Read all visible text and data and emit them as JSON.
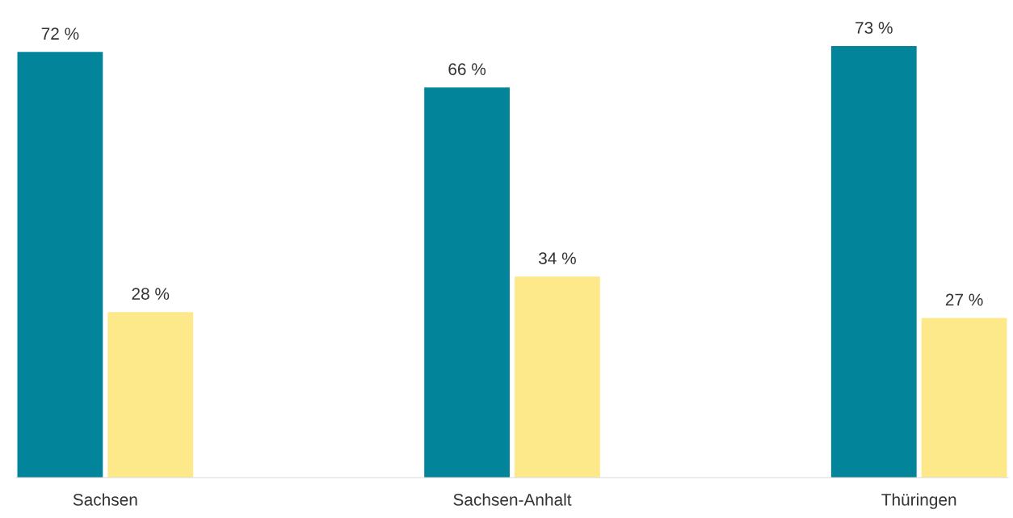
{
  "chart_data": {
    "type": "bar",
    "categories": [
      "Sachsen",
      "Sachsen-Anhalt",
      "Thüringen"
    ],
    "series": [
      {
        "color": "#02849a",
        "values": [
          72,
          66,
          73
        ],
        "value_labels": [
          "72 %",
          "66 %",
          "73 %"
        ]
      },
      {
        "color": "#fde88a",
        "values": [
          28,
          34,
          27
        ],
        "value_labels": [
          "28 %",
          "34 %",
          "27 %"
        ]
      }
    ],
    "grid": false,
    "legend": false
  }
}
